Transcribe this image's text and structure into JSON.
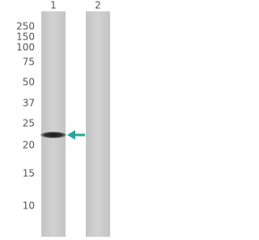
{
  "lanes": [
    "1",
    "2"
  ],
  "markers": [
    "250",
    "150",
    "100",
    "75",
    "50",
    "37",
    "25",
    "20",
    "15",
    "10"
  ]
}
